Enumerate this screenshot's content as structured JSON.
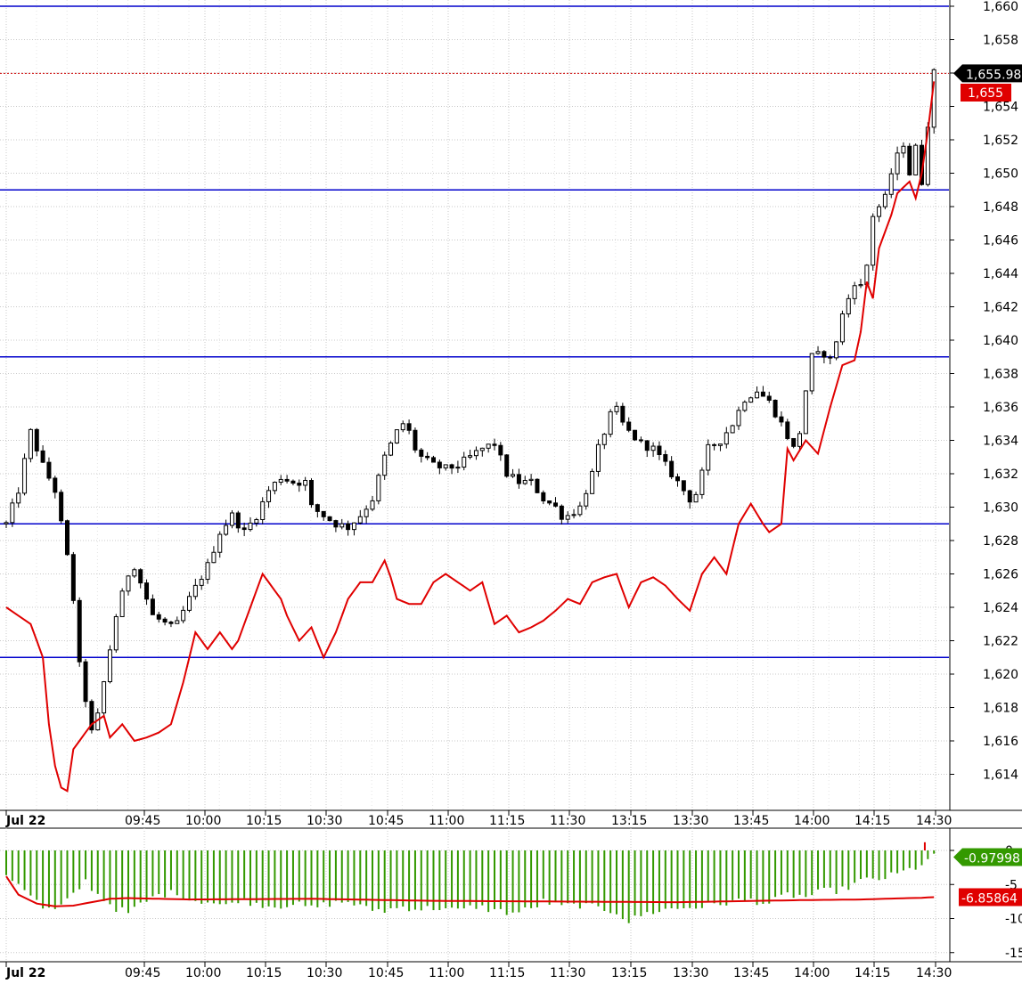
{
  "chart_data": [
    {
      "type": "candlestick",
      "title": "",
      "xlabel": "",
      "ylabel": "",
      "ylim": [
        1612,
        1660
      ],
      "x_ticks": [
        "Jul 22",
        "09:45",
        "10:00",
        "10:15",
        "10:30",
        "10:45",
        "11:00",
        "11:15",
        "11:30",
        "13:15",
        "13:30",
        "13:45",
        "14:00",
        "14:15",
        "14:30"
      ],
      "y_ticks": [
        "1,614",
        "1,616",
        "1,618",
        "1,620",
        "1,622",
        "1,624",
        "1,626",
        "1,628",
        "1,630",
        "1,632",
        "1,634",
        "1,636",
        "1,638",
        "1,640",
        "1,642",
        "1,644",
        "1,646",
        "1,648",
        "1,650",
        "1,652",
        "1,654",
        "1,656",
        "1,658",
        "1,660"
      ],
      "grid": true,
      "horizontal_lines": [
        1660,
        1649,
        1639,
        1629,
        1621
      ],
      "last_price_label": "1,655.98",
      "red_line_label": "1,655",
      "price_path": [
        [
          0,
          1629
        ],
        [
          2,
          1631
        ],
        [
          4,
          1634.5
        ],
        [
          6,
          1632.5
        ],
        [
          8,
          1631
        ],
        [
          10,
          1627
        ],
        [
          11,
          1624.5
        ],
        [
          12,
          1620.5
        ],
        [
          13,
          1618.5
        ],
        [
          14,
          1616.5
        ],
        [
          15,
          1617.5
        ],
        [
          16,
          1619.5
        ],
        [
          18,
          1623.5
        ],
        [
          20,
          1626
        ],
        [
          21,
          1626.5
        ],
        [
          22,
          1625.5
        ],
        [
          24,
          1623.5
        ],
        [
          27,
          1622.8
        ],
        [
          28,
          1623
        ],
        [
          30,
          1624.5
        ],
        [
          33,
          1626.5
        ],
        [
          35,
          1628.5
        ],
        [
          37,
          1629.5
        ],
        [
          39,
          1628.5
        ],
        [
          41,
          1629.5
        ],
        [
          43,
          1631
        ],
        [
          45,
          1631.8
        ],
        [
          47,
          1631.5
        ],
        [
          49,
          1631.5
        ],
        [
          50,
          1630
        ],
        [
          52,
          1629.5
        ],
        [
          54,
          1629
        ],
        [
          56,
          1628.8
        ],
        [
          58,
          1629.5
        ],
        [
          60,
          1630.5
        ],
        [
          62,
          1633
        ],
        [
          64,
          1634.5
        ],
        [
          65,
          1635
        ],
        [
          66,
          1634.5
        ],
        [
          67,
          1633.5
        ],
        [
          68,
          1633
        ],
        [
          70,
          1632.5
        ],
        [
          72,
          1632.3
        ],
        [
          74,
          1632.5
        ],
        [
          76,
          1633
        ],
        [
          78,
          1633.5
        ],
        [
          80,
          1633.8
        ],
        [
          82,
          1632
        ],
        [
          84,
          1631.5
        ],
        [
          86,
          1631.5
        ],
        [
          88,
          1630.5
        ],
        [
          90,
          1630
        ],
        [
          91,
          1629.5
        ],
        [
          92,
          1629.5
        ],
        [
          94,
          1630
        ],
        [
          96,
          1632
        ],
        [
          97,
          1633.5
        ],
        [
          98,
          1634.5
        ],
        [
          99,
          1635.5
        ],
        [
          100,
          1635.8
        ],
        [
          101,
          1635
        ],
        [
          102,
          1634.5
        ],
        [
          104,
          1633.8
        ],
        [
          106,
          1633.5
        ],
        [
          108,
          1632.5
        ],
        [
          110,
          1631.5
        ],
        [
          112,
          1630.5
        ],
        [
          113,
          1630.8
        ],
        [
          114,
          1632
        ],
        [
          115,
          1633.5
        ],
        [
          117,
          1634
        ],
        [
          119,
          1635
        ],
        [
          121,
          1636.5
        ],
        [
          123,
          1637
        ],
        [
          125,
          1636.3
        ],
        [
          127,
          1635
        ],
        [
          129,
          1633.5
        ],
        [
          130,
          1634.5
        ],
        [
          131,
          1637
        ],
        [
          132,
          1639
        ],
        [
          134,
          1639.2
        ],
        [
          135,
          1638.8
        ],
        [
          136,
          1640
        ],
        [
          137,
          1641.5
        ],
        [
          138,
          1642.5
        ],
        [
          139,
          1643.5
        ],
        [
          140,
          1643.2
        ],
        [
          141,
          1644.5
        ],
        [
          142,
          1647.5
        ],
        [
          143,
          1648
        ],
        [
          144,
          1648.5
        ],
        [
          145,
          1650
        ],
        [
          146,
          1651
        ],
        [
          147,
          1651.8
        ],
        [
          148,
          1650
        ],
        [
          149,
          1651.5
        ],
        [
          150,
          1649.5
        ],
        [
          151,
          1653
        ],
        [
          152,
          1656
        ]
      ],
      "red_line": [
        [
          0,
          1624
        ],
        [
          2,
          1623.5
        ],
        [
          4,
          1623
        ],
        [
          6,
          1621
        ],
        [
          7,
          1617
        ],
        [
          8,
          1614.5
        ],
        [
          9,
          1613.2
        ],
        [
          10,
          1613
        ],
        [
          11,
          1615.5
        ],
        [
          13,
          1616.5
        ],
        [
          14,
          1617
        ],
        [
          16,
          1617.5
        ],
        [
          17,
          1616.2
        ],
        [
          19,
          1617
        ],
        [
          21,
          1616
        ],
        [
          23,
          1616.2
        ],
        [
          25,
          1616.5
        ],
        [
          27,
          1617
        ],
        [
          29,
          1619.5
        ],
        [
          31,
          1622.5
        ],
        [
          33,
          1621.5
        ],
        [
          35,
          1622.5
        ],
        [
          37,
          1621.5
        ],
        [
          38,
          1622
        ],
        [
          40,
          1624
        ],
        [
          42,
          1626
        ],
        [
          43,
          1625.5
        ],
        [
          45,
          1624.5
        ],
        [
          46,
          1623.5
        ],
        [
          48,
          1622
        ],
        [
          50,
          1622.8
        ],
        [
          52,
          1621
        ],
        [
          54,
          1622.5
        ],
        [
          56,
          1624.5
        ],
        [
          58,
          1625.5
        ],
        [
          60,
          1625.5
        ],
        [
          62,
          1626.8
        ],
        [
          63,
          1625.8
        ],
        [
          64,
          1624.5
        ],
        [
          66,
          1624.2
        ],
        [
          68,
          1624.2
        ],
        [
          70,
          1625.5
        ],
        [
          72,
          1626
        ],
        [
          74,
          1625.5
        ],
        [
          76,
          1625
        ],
        [
          78,
          1625.5
        ],
        [
          80,
          1623
        ],
        [
          82,
          1623.5
        ],
        [
          84,
          1622.5
        ],
        [
          86,
          1622.8
        ],
        [
          88,
          1623.2
        ],
        [
          90,
          1623.8
        ],
        [
          92,
          1624.5
        ],
        [
          94,
          1624.2
        ],
        [
          96,
          1625.5
        ],
        [
          98,
          1625.8
        ],
        [
          100,
          1626
        ],
        [
          102,
          1624
        ],
        [
          104,
          1625.5
        ],
        [
          106,
          1625.8
        ],
        [
          108,
          1625.3
        ],
        [
          110,
          1624.5
        ],
        [
          112,
          1623.8
        ],
        [
          114,
          1626
        ],
        [
          116,
          1627
        ],
        [
          118,
          1626
        ],
        [
          120,
          1629
        ],
        [
          122,
          1630.2
        ],
        [
          124,
          1629
        ],
        [
          125,
          1628.5
        ],
        [
          127,
          1629
        ],
        [
          128,
          1633.5
        ],
        [
          129,
          1632.8
        ],
        [
          131,
          1634
        ],
        [
          133,
          1633.2
        ],
        [
          135,
          1636
        ],
        [
          137,
          1638.5
        ],
        [
          139,
          1638.8
        ],
        [
          140,
          1640.5
        ],
        [
          141,
          1643.5
        ],
        [
          142,
          1642.5
        ],
        [
          143,
          1645.5
        ],
        [
          145,
          1647.5
        ],
        [
          146,
          1648.8
        ],
        [
          148,
          1649.5
        ],
        [
          149,
          1648.5
        ],
        [
          150,
          1650
        ],
        [
          151,
          1652.5
        ],
        [
          152,
          1655.5
        ]
      ],
      "price_series_name": "",
      "red_series_name": ""
    },
    {
      "type": "bar",
      "title": "",
      "xlabel": "",
      "ylabel": "",
      "ylim": [
        -17,
        0.5
      ],
      "y_ticks": [
        "0",
        "-5",
        "-10",
        "-15"
      ],
      "x_ticks": [
        "Jul 22",
        "09:45",
        "10:00",
        "10:15",
        "10:30",
        "10:45",
        "11:00",
        "11:15",
        "11:30",
        "13:15",
        "13:30",
        "13:45",
        "14:00",
        "14:15",
        "14:30"
      ],
      "grid": true,
      "histogram_label": "-0.97998",
      "signal_label": "-6.85864",
      "histogram_keypoints": [
        [
          0,
          -3.5
        ],
        [
          3,
          -5.5
        ],
        [
          6,
          -8.5
        ],
        [
          8,
          -8.8
        ],
        [
          10,
          -7.5
        ],
        [
          13,
          -4.5
        ],
        [
          15,
          -6.5
        ],
        [
          18,
          -8.5
        ],
        [
          20,
          -9.2
        ],
        [
          22,
          -8
        ],
        [
          25,
          -6.5
        ],
        [
          28,
          -6.2
        ],
        [
          30,
          -7.2
        ],
        [
          33,
          -7.5
        ],
        [
          36,
          -8.2
        ],
        [
          38,
          -7.2
        ],
        [
          41,
          -7.8
        ],
        [
          44,
          -8.2
        ],
        [
          47,
          -7.8
        ],
        [
          50,
          -8.5
        ],
        [
          53,
          -7.8
        ],
        [
          56,
          -7.5
        ],
        [
          59,
          -8.6
        ],
        [
          62,
          -8.8
        ],
        [
          65,
          -8.3
        ],
        [
          68,
          -8.6
        ],
        [
          71,
          -8.4
        ],
        [
          74,
          -8.9
        ],
        [
          77,
          -8.2
        ],
        [
          80,
          -8.8
        ],
        [
          83,
          -9.2
        ],
        [
          86,
          -8.6
        ],
        [
          88,
          -7.5
        ],
        [
          91,
          -8.2
        ],
        [
          94,
          -8
        ],
        [
          97,
          -8.5
        ],
        [
          100,
          -9
        ],
        [
          102,
          -10.5
        ],
        [
          104,
          -9.5
        ],
        [
          107,
          -8.8
        ],
        [
          110,
          -8.5
        ],
        [
          113,
          -8.3
        ],
        [
          116,
          -8
        ],
        [
          119,
          -7.5
        ],
        [
          122,
          -7.3
        ],
        [
          125,
          -7.8
        ],
        [
          128,
          -6.5
        ],
        [
          131,
          -6.8
        ],
        [
          134,
          -6
        ],
        [
          137,
          -5.8
        ],
        [
          140,
          -4.5
        ],
        [
          143,
          -4.2
        ],
        [
          146,
          -3.5
        ],
        [
          149,
          -2.5
        ],
        [
          151,
          -1.5
        ],
        [
          152,
          -0.98
        ]
      ],
      "signal_line": [
        [
          0,
          -3.8
        ],
        [
          2,
          -6.5
        ],
        [
          5,
          -7.8
        ],
        [
          8,
          -8.2
        ],
        [
          11,
          -8.1
        ],
        [
          14,
          -7.6
        ],
        [
          17,
          -7.1
        ],
        [
          20,
          -7
        ],
        [
          30,
          -7.2
        ],
        [
          50,
          -7.1
        ],
        [
          70,
          -7.4
        ],
        [
          90,
          -7.5
        ],
        [
          110,
          -7.6
        ],
        [
          130,
          -7.3
        ],
        [
          140,
          -7.2
        ],
        [
          150,
          -6.95
        ],
        [
          152,
          -6.86
        ]
      ]
    }
  ]
}
